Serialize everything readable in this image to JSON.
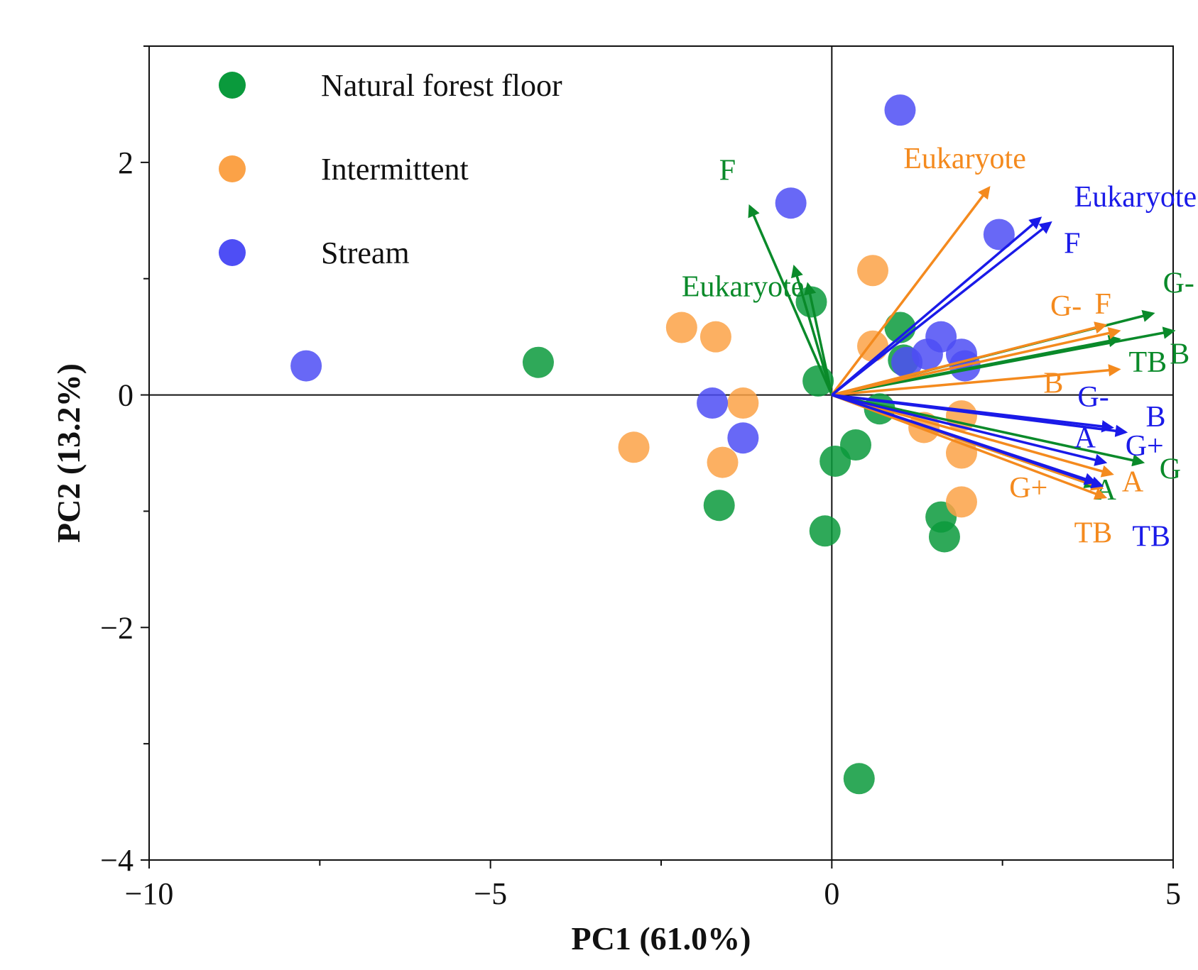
{
  "chart_data": {
    "type": "scatter",
    "title": "",
    "xlabel": "PC1 (61.0%)",
    "ylabel": "PC2 (13.2%)",
    "xlim": [
      -10,
      5
    ],
    "ylim": [
      -4,
      3
    ],
    "xticks": [
      -10,
      -5,
      0,
      5
    ],
    "yticks": [
      -4,
      -2,
      0,
      2
    ],
    "xtick_labels": [
      "−10",
      "−5",
      "0",
      "5"
    ],
    "ytick_labels": [
      "−4",
      "−2",
      "0",
      "2"
    ],
    "grid": false,
    "reference_lines": {
      "x": 0,
      "y": 0
    },
    "legend": {
      "placement": "top-left",
      "entries": [
        {
          "label": "Natural forest floor",
          "color": "#0a9a3c"
        },
        {
          "label": "Intermittent",
          "color": "#fba247"
        },
        {
          "label": "Stream",
          "color": "#4e4ef5"
        }
      ]
    },
    "series": [
      {
        "name": "Natural forest floor",
        "color": "#0a9a3c",
        "points": [
          [
            -4.3,
            0.28
          ],
          [
            -0.3,
            0.8
          ],
          [
            -0.2,
            0.12
          ],
          [
            1.0,
            0.58
          ],
          [
            1.05,
            0.3
          ],
          [
            0.7,
            -0.12
          ],
          [
            0.35,
            -0.43
          ],
          [
            0.05,
            -0.57
          ],
          [
            -1.65,
            -0.95
          ],
          [
            -0.1,
            -1.17
          ],
          [
            1.6,
            -1.05
          ],
          [
            1.65,
            -1.22
          ],
          [
            0.4,
            -3.3
          ]
        ]
      },
      {
        "name": "Intermittent",
        "color": "#fba247",
        "points": [
          [
            -2.2,
            0.58
          ],
          [
            -1.7,
            0.5
          ],
          [
            0.6,
            1.07
          ],
          [
            0.6,
            0.42
          ],
          [
            -1.3,
            -0.07
          ],
          [
            -2.9,
            -0.45
          ],
          [
            -1.6,
            -0.58
          ],
          [
            1.9,
            -0.18
          ],
          [
            1.35,
            -0.28
          ],
          [
            1.9,
            -0.5
          ],
          [
            1.9,
            -0.92
          ]
        ]
      },
      {
        "name": "Stream",
        "color": "#4e4ef5",
        "points": [
          [
            1.0,
            2.45
          ],
          [
            -0.6,
            1.65
          ],
          [
            2.45,
            1.38
          ],
          [
            -7.7,
            0.25
          ],
          [
            1.6,
            0.5
          ],
          [
            1.4,
            0.35
          ],
          [
            1.9,
            0.35
          ],
          [
            1.1,
            0.28
          ],
          [
            1.95,
            0.25
          ],
          [
            -1.75,
            -0.07
          ],
          [
            -1.3,
            -0.37
          ]
        ]
      }
    ],
    "loadings": [
      {
        "group": "Natural forest floor",
        "color": "#0a8a2a",
        "vectors": [
          {
            "label": "F",
            "x": -1.2,
            "y": 1.62,
            "label_x": -1.65,
            "label_y": 1.85
          },
          {
            "label": "",
            "x": -0.55,
            "y": 1.1
          },
          {
            "label": "Eukaryote",
            "x": -0.35,
            "y": 0.95,
            "label_x": -2.2,
            "label_y": 0.85
          },
          {
            "label": "G-",
            "x": 4.7,
            "y": 0.7,
            "label_x": 4.85,
            "label_y": 0.88
          },
          {
            "label": "B",
            "x": 5.0,
            "y": 0.55,
            "label_x": 4.95,
            "label_y": 0.27
          },
          {
            "label": "TB",
            "x": 4.2,
            "y": 0.48,
            "label_x": 4.35,
            "label_y": 0.2
          },
          {
            "label": "G",
            "x": 4.55,
            "y": -0.58,
            "label_x": 4.8,
            "label_y": -0.72
          },
          {
            "label": "A",
            "x": 3.85,
            "y": -0.78,
            "label_x": 3.85,
            "label_y": -0.9
          }
        ]
      },
      {
        "group": "Intermittent",
        "color": "#f48a1e",
        "vectors": [
          {
            "label": "Eukaryote",
            "x": 2.3,
            "y": 1.78,
            "label_x": 1.05,
            "label_y": 1.95
          },
          {
            "label": "G-",
            "x": 4.0,
            "y": 0.6,
            "label_x": 3.2,
            "label_y": 0.68
          },
          {
            "label": "F",
            "x": 4.2,
            "y": 0.55,
            "label_x": 3.85,
            "label_y": 0.7
          },
          {
            "label": "B",
            "x": 4.2,
            "y": 0.22,
            "label_x": 3.1,
            "label_y": 0.02
          },
          {
            "label": "A",
            "x": 4.1,
            "y": -0.68,
            "label_x": 4.25,
            "label_y": -0.83
          },
          {
            "label": "G+",
            "x": 4.0,
            "y": -0.88,
            "label_x": 2.6,
            "label_y": -0.88
          },
          {
            "label": "TB",
            "x": 3.95,
            "y": -0.8,
            "label_x": 3.55,
            "label_y": -1.27
          }
        ]
      },
      {
        "group": "Stream",
        "color": "#1a1ae8",
        "vectors": [
          {
            "label": "Eukaryote",
            "x": 3.05,
            "y": 1.52,
            "label_x": 3.55,
            "label_y": 1.62
          },
          {
            "label": "F",
            "x": 3.2,
            "y": 1.48,
            "label_x": 3.4,
            "label_y": 1.22
          },
          {
            "label": "B",
            "x": 4.3,
            "y": -0.32,
            "label_x": 4.6,
            "label_y": -0.27
          },
          {
            "label": "G-",
            "x": 4.1,
            "y": -0.28,
            "label_x": 3.6,
            "label_y": -0.1
          },
          {
            "label": "G+",
            "x": 4.0,
            "y": -0.58,
            "label_x": 4.3,
            "label_y": -0.52
          },
          {
            "label": "A",
            "x": 3.85,
            "y": -0.75,
            "label_x": 3.55,
            "label_y": -0.45
          },
          {
            "label": "TB",
            "x": 3.95,
            "y": -0.78,
            "label_x": 4.4,
            "label_y": -1.3
          }
        ]
      }
    ]
  }
}
